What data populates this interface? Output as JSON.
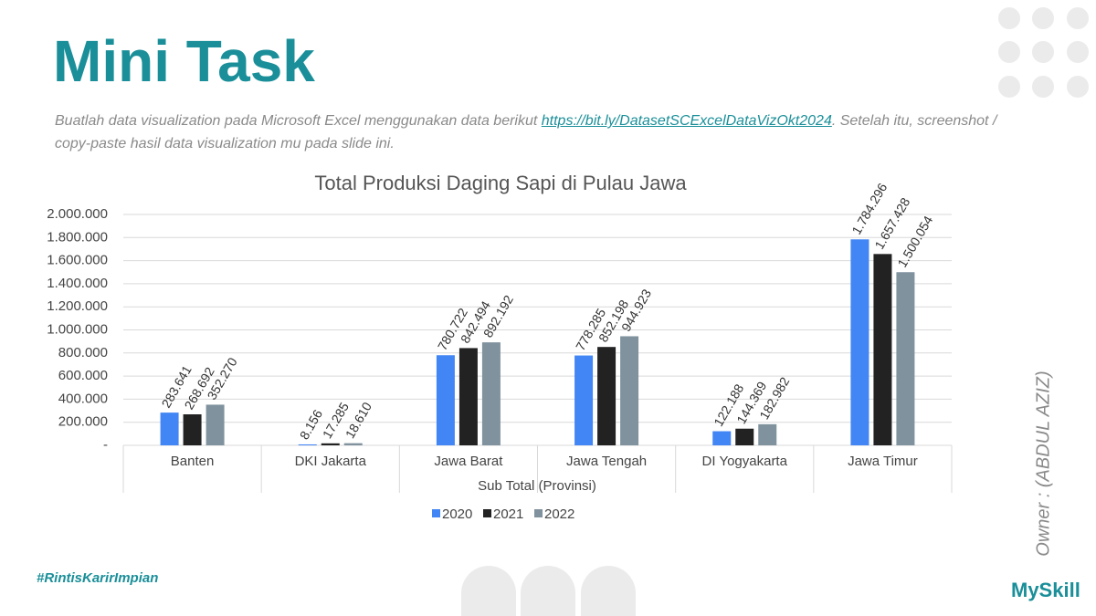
{
  "slide": {
    "title": "Mini Task",
    "instruction": {
      "before": "Buatlah data visualization pada Microsoft Excel menggunakan data berikut ",
      "link": "https://bit.ly/DatasetSCExcelDataVizOkt2024",
      "after": ". Setelah itu, screenshot / copy-paste hasil data visualization mu pada slide ini."
    },
    "owner": "Owner : (ABDUL AZIZ)",
    "hashtag": "#RintisKarirImpian",
    "brand": "MySkill"
  },
  "chart_data": {
    "type": "bar",
    "title": "Total Produksi Daging Sapi di Pulau Jawa",
    "x_label": "Sub Total (Provinsi)",
    "categories": [
      "Banten",
      "DKI Jakarta",
      "Jawa Barat",
      "Jawa Tengah",
      "DI Yogyakarta",
      "Jawa Timur"
    ],
    "series": [
      {
        "name": "2020",
        "color": "#4285f4",
        "values": [
          283641,
          8156,
          780722,
          778285,
          122188,
          1784296
        ],
        "value_labels": [
          "283.641",
          "8.156",
          "780.722",
          "778.285",
          "122.188",
          "1.784.296"
        ]
      },
      {
        "name": "2021",
        "color": "#222222",
        "values": [
          268692,
          17285,
          842494,
          852198,
          144369,
          1657428
        ],
        "value_labels": [
          "268.692",
          "17.285",
          "842.494",
          "852.198",
          "144.369",
          "1.657.428"
        ]
      },
      {
        "name": "2022",
        "color": "#7f929e",
        "values": [
          352270,
          18610,
          892192,
          944923,
          182982,
          1500054
        ],
        "value_labels": [
          "352.270",
          "18.610",
          "892.192",
          "944.923",
          "182.982",
          "1.500.054"
        ]
      }
    ],
    "ylim": [
      0,
      2000000
    ],
    "yticks": [
      {
        "value": 0,
        "label": "-"
      },
      {
        "value": 200000,
        "label": "200.000"
      },
      {
        "value": 400000,
        "label": "400.000"
      },
      {
        "value": 600000,
        "label": "600.000"
      },
      {
        "value": 800000,
        "label": "800.000"
      },
      {
        "value": 1000000,
        "label": "1.000.000"
      },
      {
        "value": 1200000,
        "label": "1.200.000"
      },
      {
        "value": 1400000,
        "label": "1.400.000"
      },
      {
        "value": 1600000,
        "label": "1.600.000"
      },
      {
        "value": 1800000,
        "label": "1.800.000"
      },
      {
        "value": 2000000,
        "label": "2.000.000"
      }
    ],
    "grid": true,
    "legend": "bottom"
  }
}
